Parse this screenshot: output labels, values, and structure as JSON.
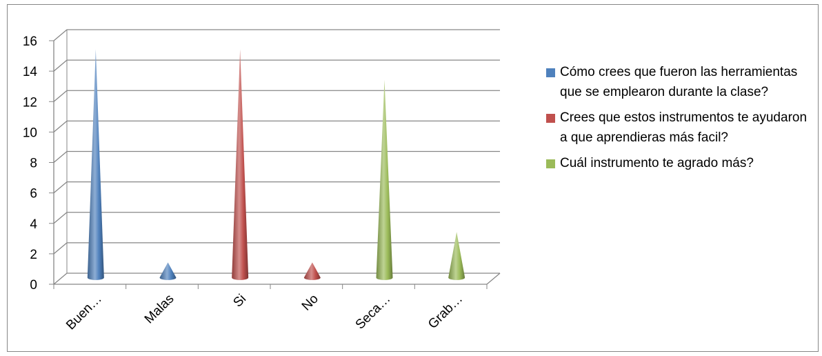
{
  "chart_data": {
    "type": "bar",
    "bar_shape": "cone",
    "categories": [
      "Buen…",
      "Malas",
      "Si",
      "No",
      "Seca…",
      "Grab…"
    ],
    "series": [
      {
        "name": "Cómo crees que fueron las herramientas que se emplearon durante la  clase?",
        "color": "#4f81bd",
        "values": [
          15,
          1,
          null,
          null,
          null,
          null
        ]
      },
      {
        "name": "Crees que estos instrumentos te ayudaron a que aprendieras más facil?",
        "color": "#c0504d",
        "values": [
          null,
          null,
          15,
          1,
          null,
          null
        ]
      },
      {
        "name": "Cuál instrumento te agrado más?",
        "color": "#9bbb59",
        "values": [
          null,
          null,
          null,
          null,
          13,
          3
        ]
      }
    ],
    "ylim": [
      0,
      16
    ],
    "yticks": [
      0,
      2,
      4,
      6,
      8,
      10,
      12,
      14,
      16
    ],
    "grid": true,
    "legend_position": "right",
    "title": "",
    "xlabel": "",
    "ylabel": ""
  }
}
